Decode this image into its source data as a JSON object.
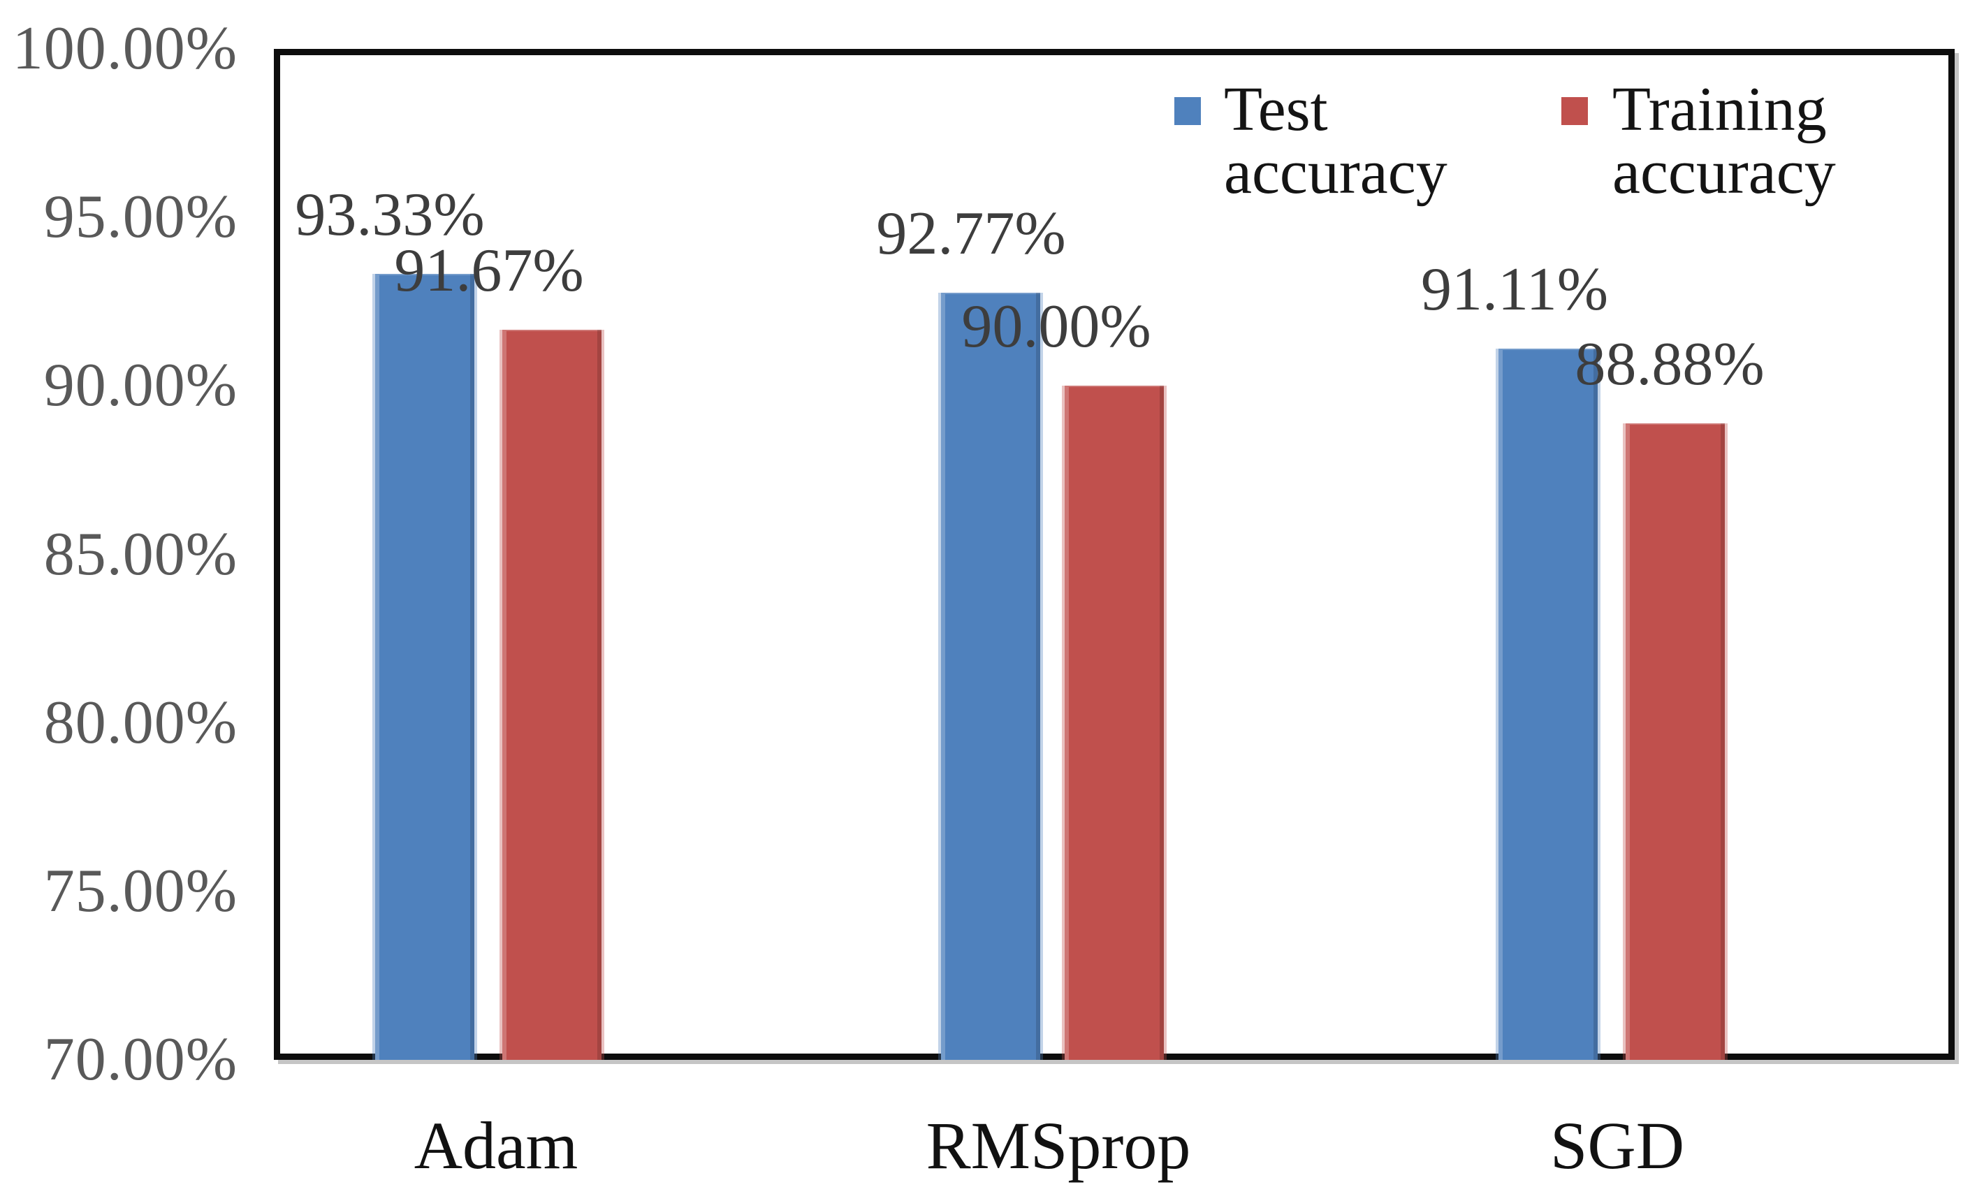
{
  "chart_data": {
    "type": "bar",
    "title": "",
    "xlabel": "",
    "ylabel": "",
    "categories": [
      "Adam",
      "RMSprop",
      "SGD"
    ],
    "series": [
      {
        "name": "Test accuracy",
        "color": "#4F81BD",
        "values": [
          93.33,
          92.77,
          91.11
        ],
        "labels": [
          "93.33%",
          "92.77%",
          "91.11%"
        ]
      },
      {
        "name": "Training accuracy",
        "color": "#C0504D",
        "values": [
          91.67,
          90.0,
          88.88
        ],
        "labels": [
          "91.67%",
          "90.00%",
          "88.88%"
        ]
      }
    ],
    "ylim": [
      70,
      100
    ],
    "ytick_step": 5,
    "ytick_labels": [
      "100.00%",
      "95.00%",
      "90.00%",
      "85.00%",
      "80.00%",
      "75.00%",
      "70.00%"
    ],
    "grid": false,
    "legend_position": "top-right-inside"
  },
  "legend": {
    "items": [
      {
        "label": "Test accuracy",
        "color": "#4F81BD"
      },
      {
        "label": "Training accuracy",
        "color": "#C0504D"
      }
    ]
  }
}
